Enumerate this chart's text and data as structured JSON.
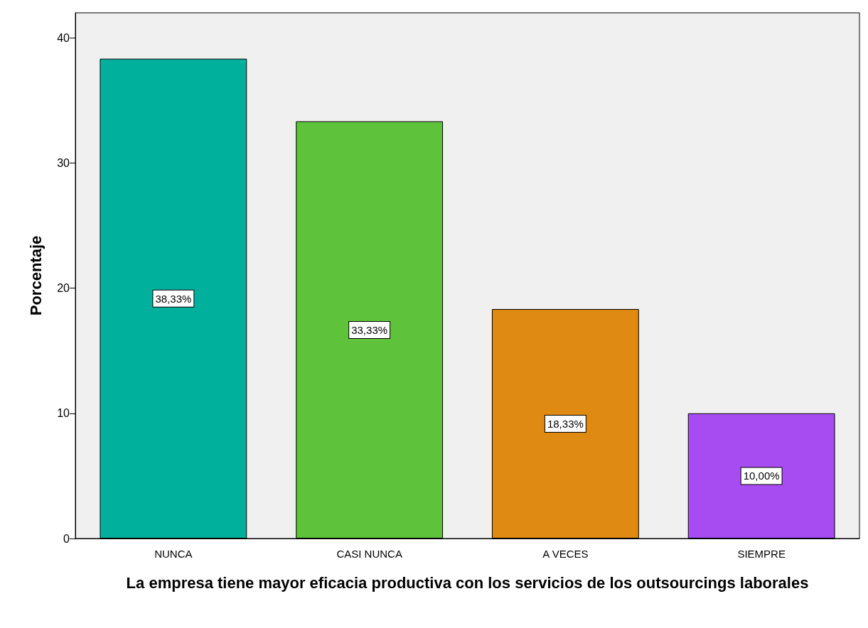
{
  "chart_data": {
    "type": "bar",
    "xlabel": "La empresa tiene mayor eficacia productiva con los servicios de los outsourcings laborales",
    "ylabel": "Porcentaje",
    "categories": [
      "NUNCA",
      "CASI NUNCA",
      "A VECES",
      "SIEMPRE"
    ],
    "values": [
      38.33,
      33.33,
      18.33,
      10.0
    ],
    "value_labels": [
      "38,33%",
      "33,33%",
      "18,33%",
      "10,00%"
    ],
    "colors": [
      "#00b09c",
      "#5ec23a",
      "#df8a12",
      "#a64cf0"
    ],
    "ylim": [
      0,
      42
    ],
    "yticks": [
      0,
      10,
      20,
      30,
      40
    ],
    "grid": false
  }
}
